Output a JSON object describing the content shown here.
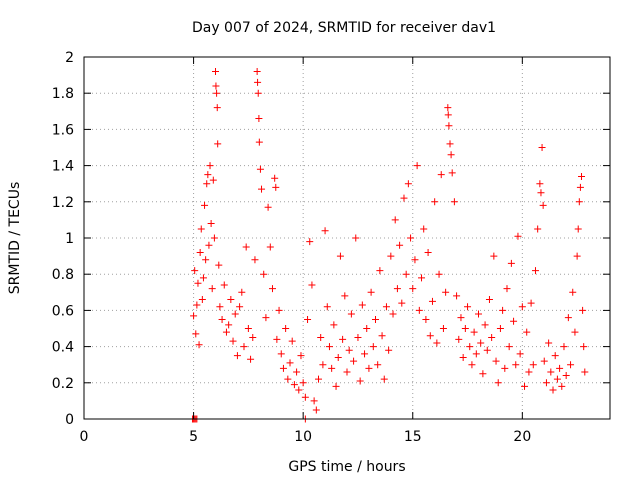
{
  "chart_data": {
    "type": "scatter",
    "title": "Day 007 of 2024, SRMTID for receiver dav1",
    "xlabel": "GPS time / hours",
    "ylabel": "SRMTID / TECUs",
    "xlim": [
      0,
      24
    ],
    "ylim": [
      0,
      2
    ],
    "x_ticks": [
      0,
      5,
      10,
      15,
      20
    ],
    "x_tick_labels": [
      "0",
      "5",
      "10",
      "15",
      "20"
    ],
    "y_ticks": [
      0,
      0.2,
      0.4,
      0.6,
      0.8,
      1,
      1.2,
      1.4,
      1.6,
      1.8,
      2
    ],
    "y_tick_labels": [
      "0",
      "0.2",
      "0.4",
      "0.6",
      "0.8",
      "1",
      "1.2",
      "1.4",
      "1.6",
      "1.8",
      "2"
    ],
    "grid": true,
    "marker": "+",
    "marker_color": "#ff0000",
    "series": [
      {
        "name": "SRMTID",
        "points": [
          [
            4.95,
            0.0
          ],
          [
            5.0,
            0.0
          ],
          [
            5.05,
            0.0
          ],
          [
            5.1,
            0.0
          ],
          [
            5.15,
            0.0
          ],
          [
            10.1,
            0.0
          ],
          [
            5.0,
            0.57
          ],
          [
            5.05,
            0.82
          ],
          [
            5.1,
            0.47
          ],
          [
            5.15,
            0.63
          ],
          [
            5.2,
            0.75
          ],
          [
            5.25,
            0.41
          ],
          [
            5.3,
            0.92
          ],
          [
            5.35,
            1.05
          ],
          [
            5.4,
            0.66
          ],
          [
            5.45,
            0.78
          ],
          [
            5.5,
            1.18
          ],
          [
            5.55,
            0.88
          ],
          [
            5.6,
            1.3
          ],
          [
            5.65,
            1.35
          ],
          [
            5.7,
            0.96
          ],
          [
            5.75,
            1.4
          ],
          [
            5.8,
            1.08
          ],
          [
            5.85,
            0.72
          ],
          [
            5.9,
            1.32
          ],
          [
            5.95,
            1.0
          ],
          [
            6.0,
            1.92
          ],
          [
            6.02,
            1.84
          ],
          [
            6.05,
            1.8
          ],
          [
            6.08,
            1.72
          ],
          [
            6.1,
            1.52
          ],
          [
            6.15,
            0.85
          ],
          [
            6.2,
            0.62
          ],
          [
            6.3,
            0.55
          ],
          [
            6.4,
            0.74
          ],
          [
            6.5,
            0.48
          ],
          [
            6.6,
            0.52
          ],
          [
            6.7,
            0.66
          ],
          [
            6.8,
            0.43
          ],
          [
            6.9,
            0.58
          ],
          [
            7.0,
            0.35
          ],
          [
            7.1,
            0.62
          ],
          [
            7.2,
            0.7
          ],
          [
            7.3,
            0.4
          ],
          [
            7.4,
            0.95
          ],
          [
            7.5,
            0.5
          ],
          [
            7.6,
            0.33
          ],
          [
            7.7,
            0.45
          ],
          [
            7.8,
            0.88
          ],
          [
            7.9,
            1.92
          ],
          [
            7.92,
            1.86
          ],
          [
            7.95,
            1.8
          ],
          [
            7.98,
            1.66
          ],
          [
            8.0,
            1.53
          ],
          [
            8.05,
            1.38
          ],
          [
            8.1,
            1.27
          ],
          [
            8.2,
            0.8
          ],
          [
            8.3,
            0.56
          ],
          [
            8.4,
            1.17
          ],
          [
            8.5,
            0.95
          ],
          [
            8.6,
            0.72
          ],
          [
            8.7,
            1.33
          ],
          [
            8.75,
            1.28
          ],
          [
            8.8,
            0.44
          ],
          [
            8.9,
            0.6
          ],
          [
            9.0,
            0.36
          ],
          [
            9.1,
            0.28
          ],
          [
            9.2,
            0.5
          ],
          [
            9.3,
            0.22
          ],
          [
            9.4,
            0.31
          ],
          [
            9.5,
            0.43
          ],
          [
            9.6,
            0.19
          ],
          [
            9.7,
            0.26
          ],
          [
            9.8,
            0.16
          ],
          [
            9.9,
            0.35
          ],
          [
            10.0,
            0.2
          ],
          [
            10.1,
            0.12
          ],
          [
            10.2,
            0.55
          ],
          [
            10.3,
            0.98
          ],
          [
            10.4,
            0.74
          ],
          [
            10.5,
            0.1
          ],
          [
            10.6,
            0.05
          ],
          [
            10.7,
            0.22
          ],
          [
            10.8,
            0.45
          ],
          [
            10.9,
            0.3
          ],
          [
            11.0,
            1.04
          ],
          [
            11.1,
            0.62
          ],
          [
            11.2,
            0.4
          ],
          [
            11.3,
            0.28
          ],
          [
            11.4,
            0.52
          ],
          [
            11.5,
            0.18
          ],
          [
            11.6,
            0.34
          ],
          [
            11.7,
            0.9
          ],
          [
            11.8,
            0.44
          ],
          [
            11.9,
            0.68
          ],
          [
            12.0,
            0.26
          ],
          [
            12.1,
            0.38
          ],
          [
            12.2,
            0.58
          ],
          [
            12.3,
            0.32
          ],
          [
            12.4,
            1.0
          ],
          [
            12.5,
            0.45
          ],
          [
            12.6,
            0.21
          ],
          [
            12.7,
            0.63
          ],
          [
            12.8,
            0.36
          ],
          [
            12.9,
            0.5
          ],
          [
            13.0,
            0.28
          ],
          [
            13.1,
            0.7
          ],
          [
            13.2,
            0.4
          ],
          [
            13.3,
            0.55
          ],
          [
            13.4,
            0.3
          ],
          [
            13.5,
            0.82
          ],
          [
            13.6,
            0.46
          ],
          [
            13.7,
            0.22
          ],
          [
            13.8,
            0.62
          ],
          [
            13.9,
            0.38
          ],
          [
            14.0,
            0.9
          ],
          [
            14.1,
            0.58
          ],
          [
            14.2,
            1.1
          ],
          [
            14.3,
            0.72
          ],
          [
            14.4,
            0.96
          ],
          [
            14.5,
            0.64
          ],
          [
            14.6,
            1.22
          ],
          [
            14.7,
            0.8
          ],
          [
            14.8,
            1.3
          ],
          [
            14.9,
            1.0
          ],
          [
            15.0,
            0.72
          ],
          [
            15.1,
            0.88
          ],
          [
            15.2,
            1.4
          ],
          [
            15.3,
            0.6
          ],
          [
            15.4,
            0.78
          ],
          [
            15.5,
            1.05
          ],
          [
            15.6,
            0.55
          ],
          [
            15.7,
            0.92
          ],
          [
            15.8,
            0.46
          ],
          [
            15.9,
            0.65
          ],
          [
            16.0,
            1.2
          ],
          [
            16.1,
            0.42
          ],
          [
            16.2,
            0.8
          ],
          [
            16.3,
            1.35
          ],
          [
            16.4,
            0.5
          ],
          [
            16.5,
            0.7
          ],
          [
            16.6,
            1.72
          ],
          [
            16.62,
            1.68
          ],
          [
            16.65,
            1.62
          ],
          [
            16.7,
            1.52
          ],
          [
            16.75,
            1.46
          ],
          [
            16.8,
            1.36
          ],
          [
            16.9,
            1.2
          ],
          [
            17.0,
            0.68
          ],
          [
            17.1,
            0.44
          ],
          [
            17.2,
            0.56
          ],
          [
            17.3,
            0.34
          ],
          [
            17.4,
            0.5
          ],
          [
            17.5,
            0.62
          ],
          [
            17.6,
            0.4
          ],
          [
            17.7,
            0.3
          ],
          [
            17.8,
            0.48
          ],
          [
            17.9,
            0.36
          ],
          [
            18.0,
            0.58
          ],
          [
            18.1,
            0.42
          ],
          [
            18.2,
            0.25
          ],
          [
            18.3,
            0.52
          ],
          [
            18.4,
            0.38
          ],
          [
            18.5,
            0.66
          ],
          [
            18.6,
            0.45
          ],
          [
            18.7,
            0.9
          ],
          [
            18.8,
            0.32
          ],
          [
            18.9,
            0.2
          ],
          [
            19.0,
            0.5
          ],
          [
            19.1,
            0.6
          ],
          [
            19.2,
            0.28
          ],
          [
            19.3,
            0.72
          ],
          [
            19.4,
            0.4
          ],
          [
            19.5,
            0.86
          ],
          [
            19.6,
            0.54
          ],
          [
            19.7,
            0.3
          ],
          [
            19.8,
            1.01
          ],
          [
            19.9,
            0.36
          ],
          [
            20.0,
            0.62
          ],
          [
            20.1,
            0.18
          ],
          [
            20.2,
            0.48
          ],
          [
            20.3,
            0.26
          ],
          [
            20.4,
            0.64
          ],
          [
            20.5,
            0.3
          ],
          [
            20.6,
            0.82
          ],
          [
            20.7,
            1.05
          ],
          [
            20.8,
            1.3
          ],
          [
            20.85,
            1.25
          ],
          [
            20.9,
            1.5
          ],
          [
            20.95,
            1.18
          ],
          [
            21.0,
            0.32
          ],
          [
            21.1,
            0.2
          ],
          [
            21.2,
            0.42
          ],
          [
            21.3,
            0.26
          ],
          [
            21.4,
            0.16
          ],
          [
            21.5,
            0.35
          ],
          [
            21.6,
            0.22
          ],
          [
            21.7,
            0.28
          ],
          [
            21.8,
            0.18
          ],
          [
            21.9,
            0.4
          ],
          [
            22.0,
            0.24
          ],
          [
            22.1,
            0.56
          ],
          [
            22.2,
            0.3
          ],
          [
            22.3,
            0.7
          ],
          [
            22.4,
            0.48
          ],
          [
            22.5,
            0.9
          ],
          [
            22.55,
            1.05
          ],
          [
            22.6,
            1.2
          ],
          [
            22.65,
            1.28
          ],
          [
            22.7,
            1.34
          ],
          [
            22.75,
            0.6
          ],
          [
            22.8,
            0.4
          ],
          [
            22.85,
            0.26
          ]
        ]
      }
    ]
  }
}
